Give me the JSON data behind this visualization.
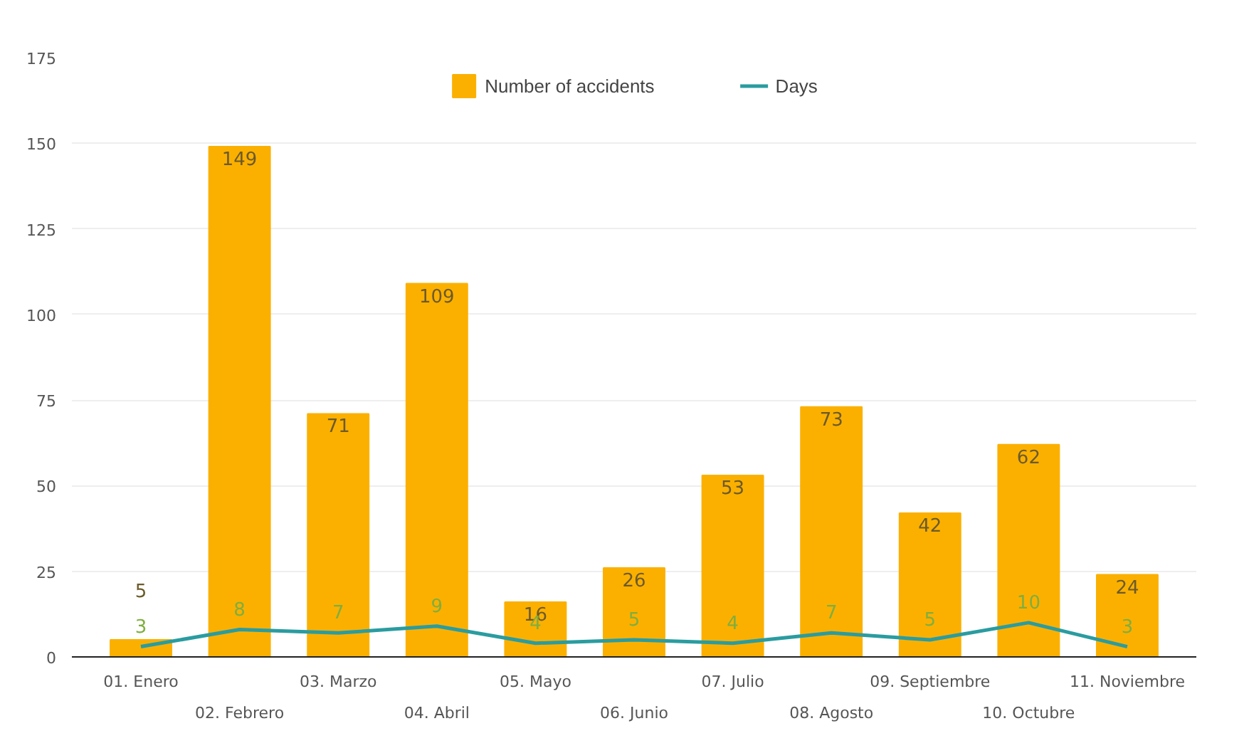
{
  "chart_data": {
    "type": "bar",
    "categories": [
      "01. Enero",
      "02. Febrero",
      "03. Marzo",
      "04. Abril",
      "05. Mayo",
      "06. Junio",
      "07. Julio",
      "08. Agosto",
      "09. Septiembre",
      "10. Octubre",
      "11. Noviembre"
    ],
    "series": [
      {
        "name": "Number of accidents",
        "color": "#fbb000",
        "values": [
          5,
          149,
          71,
          109,
          16,
          26,
          53,
          73,
          42,
          62,
          24
        ]
      },
      {
        "name": "Days",
        "type": "line",
        "color": "#2a9ca0",
        "values": [
          3,
          8,
          7,
          9,
          4,
          5,
          4,
          7,
          5,
          10,
          3
        ]
      }
    ],
    "ylim": [
      0,
      175
    ],
    "yticks": [
      0,
      25,
      50,
      75,
      100,
      125,
      150,
      175
    ],
    "grid": "y",
    "legend": "top",
    "data_labels": true,
    "marker": "none"
  }
}
